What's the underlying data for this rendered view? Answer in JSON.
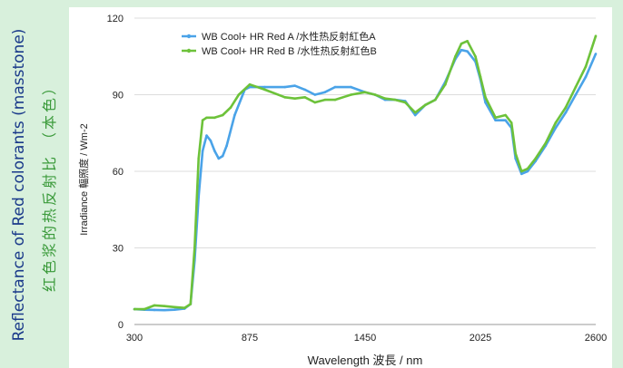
{
  "side_title": {
    "line1": "Reflectance of Red colorants (masstone)",
    "line2": "红色浆的热反射比 （本色）"
  },
  "chart_data": {
    "type": "line",
    "title": "",
    "xlabel": "Wavelength 波長 / nm",
    "ylabel": "Irradiance 輻照度 / Wm-2",
    "xlim": [
      300,
      2600
    ],
    "ylim": [
      0,
      120
    ],
    "xticks": [
      "300",
      "875",
      "1450",
      "2025",
      "2600"
    ],
    "yticks": [
      "0",
      "30",
      "60",
      "90",
      "120"
    ],
    "grid": "horizontal",
    "legend_position": "top-left",
    "series": [
      {
        "name": "WB Cool+ HR Red  A /水性热反射紅色A",
        "color": "#4aa3e8",
        "points": [
          [
            300,
            6
          ],
          [
            350,
            5.8
          ],
          [
            400,
            5.7
          ],
          [
            450,
            5.6
          ],
          [
            500,
            5.8
          ],
          [
            550,
            6.2
          ],
          [
            580,
            8
          ],
          [
            600,
            25
          ],
          [
            620,
            50
          ],
          [
            640,
            68
          ],
          [
            660,
            74
          ],
          [
            680,
            72
          ],
          [
            700,
            68
          ],
          [
            720,
            65
          ],
          [
            740,
            66
          ],
          [
            760,
            70
          ],
          [
            800,
            82
          ],
          [
            850,
            92
          ],
          [
            875,
            93
          ],
          [
            950,
            93
          ],
          [
            1050,
            93
          ],
          [
            1100,
            93.5
          ],
          [
            1150,
            92
          ],
          [
            1200,
            90
          ],
          [
            1250,
            91
          ],
          [
            1300,
            93
          ],
          [
            1380,
            93
          ],
          [
            1450,
            91
          ],
          [
            1500,
            90
          ],
          [
            1550,
            88
          ],
          [
            1600,
            88
          ],
          [
            1650,
            87.5
          ],
          [
            1700,
            82
          ],
          [
            1750,
            86
          ],
          [
            1800,
            88
          ],
          [
            1850,
            95
          ],
          [
            1900,
            104
          ],
          [
            1930,
            107.5
          ],
          [
            1960,
            107
          ],
          [
            2000,
            103
          ],
          [
            2025,
            96
          ],
          [
            2050,
            87
          ],
          [
            2100,
            80
          ],
          [
            2150,
            80
          ],
          [
            2180,
            77
          ],
          [
            2200,
            65
          ],
          [
            2230,
            59
          ],
          [
            2260,
            60
          ],
          [
            2300,
            64
          ],
          [
            2350,
            70
          ],
          [
            2400,
            77
          ],
          [
            2450,
            83
          ],
          [
            2500,
            90
          ],
          [
            2550,
            97
          ],
          [
            2600,
            106
          ]
        ]
      },
      {
        "name": "WB Cool+ HR Red  B /水性热反射紅色B",
        "color": "#6dc23a",
        "points": [
          [
            300,
            6
          ],
          [
            350,
            6
          ],
          [
            400,
            7.5
          ],
          [
            450,
            7.2
          ],
          [
            500,
            6.8
          ],
          [
            550,
            6.5
          ],
          [
            580,
            8
          ],
          [
            600,
            30
          ],
          [
            620,
            65
          ],
          [
            640,
            80
          ],
          [
            660,
            81
          ],
          [
            700,
            81
          ],
          [
            740,
            82
          ],
          [
            780,
            85
          ],
          [
            820,
            90
          ],
          [
            875,
            94
          ],
          [
            950,
            92
          ],
          [
            1050,
            89
          ],
          [
            1100,
            88.5
          ],
          [
            1150,
            89
          ],
          [
            1200,
            87
          ],
          [
            1250,
            88
          ],
          [
            1300,
            88
          ],
          [
            1380,
            90
          ],
          [
            1450,
            91
          ],
          [
            1500,
            90
          ],
          [
            1550,
            88.5
          ],
          [
            1600,
            88
          ],
          [
            1650,
            87
          ],
          [
            1700,
            83
          ],
          [
            1750,
            86
          ],
          [
            1800,
            88
          ],
          [
            1850,
            94
          ],
          [
            1900,
            105
          ],
          [
            1930,
            110
          ],
          [
            1960,
            111
          ],
          [
            2000,
            105
          ],
          [
            2025,
            97
          ],
          [
            2050,
            89
          ],
          [
            2100,
            81
          ],
          [
            2150,
            82
          ],
          [
            2180,
            79
          ],
          [
            2200,
            67
          ],
          [
            2230,
            60
          ],
          [
            2260,
            61
          ],
          [
            2300,
            65
          ],
          [
            2350,
            71
          ],
          [
            2400,
            79
          ],
          [
            2450,
            85
          ],
          [
            2500,
            93
          ],
          [
            2550,
            101
          ],
          [
            2600,
            113
          ]
        ]
      }
    ]
  }
}
